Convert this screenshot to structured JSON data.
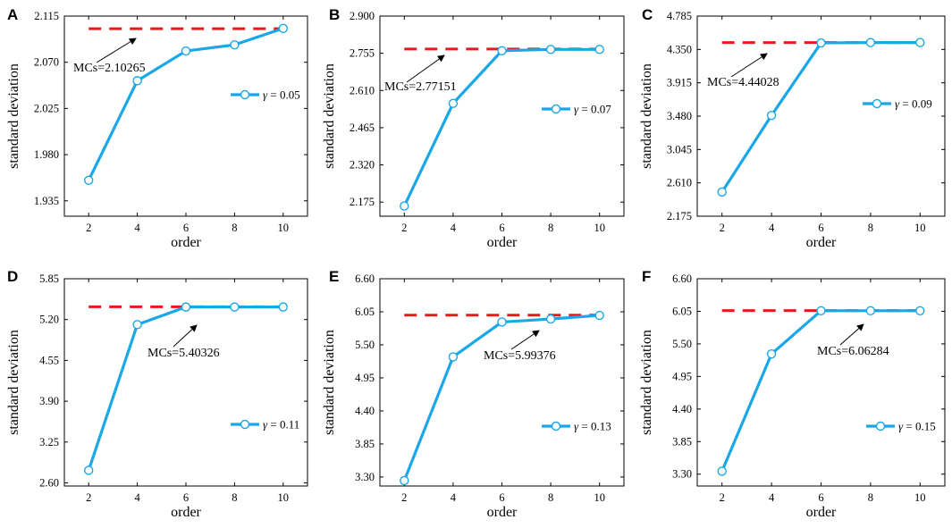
{
  "figure": {
    "xlabel": "order",
    "ylabel": "standard deviation"
  },
  "colors": {
    "series": "#1aa7e8",
    "reference": "#e8191b",
    "axis": "#000000",
    "marker_fill": "#ffffff"
  },
  "chart_data": [
    {
      "panel": "A",
      "type": "line",
      "x": [
        2,
        4,
        6,
        8,
        10
      ],
      "xticks": [
        2,
        4,
        6,
        8,
        10
      ],
      "xlim": [
        1,
        11
      ],
      "series": [
        {
          "name": "γ = 0.05",
          "values": [
            1.955,
            2.052,
            2.081,
            2.087,
            2.103
          ]
        }
      ],
      "reference": {
        "value": 2.10265,
        "label": "MCs=2.10265"
      },
      "yticks": [
        "1.935",
        "1.980",
        "2.025",
        "2.070",
        "2.115"
      ],
      "ylim": [
        1.92,
        2.115
      ],
      "xlabel": "order",
      "ylabel": "standard deviation",
      "legend_label": "γ = 0.05",
      "legend_gamma": "γ",
      "legend_value": " = 0.05"
    },
    {
      "panel": "B",
      "type": "line",
      "x": [
        2,
        4,
        6,
        8,
        10
      ],
      "xticks": [
        2,
        4,
        6,
        8,
        10
      ],
      "xlim": [
        1,
        11
      ],
      "series": [
        {
          "name": "γ = 0.07",
          "values": [
            2.16,
            2.56,
            2.765,
            2.77,
            2.77
          ]
        }
      ],
      "reference": {
        "value": 2.77151,
        "label": "MCs=2.77151"
      },
      "yticks": [
        "2.175",
        "2.320",
        "2.465",
        "2.610",
        "2.755",
        "2.900"
      ],
      "ylim": [
        2.12,
        2.9
      ],
      "xlabel": "order",
      "ylabel": "standard deviation",
      "legend_label": "γ = 0.07",
      "legend_gamma": "γ",
      "legend_value": " = 0.07"
    },
    {
      "panel": "C",
      "type": "line",
      "x": [
        2,
        4,
        6,
        8,
        10
      ],
      "xticks": [
        2,
        4,
        6,
        8,
        10
      ],
      "xlim": [
        1,
        11
      ],
      "series": [
        {
          "name": "γ = 0.09",
          "values": [
            2.49,
            3.49,
            4.435,
            4.44,
            4.44
          ]
        }
      ],
      "reference": {
        "value": 4.44028,
        "label": "MCs=4.44028"
      },
      "yticks": [
        "2.175",
        "2.610",
        "3.045",
        "3.480",
        "3.915",
        "4.350",
        "4.785"
      ],
      "ylim": [
        2.175,
        4.785
      ],
      "xlabel": "order",
      "ylabel": "standard deviation",
      "legend_label": "γ = 0.09",
      "legend_gamma": "γ",
      "legend_value": " = 0.09"
    },
    {
      "panel": "D",
      "type": "line",
      "x": [
        2,
        4,
        6,
        8,
        10
      ],
      "xticks": [
        2,
        4,
        6,
        8,
        10
      ],
      "xlim": [
        1,
        11
      ],
      "series": [
        {
          "name": "γ = 0.11",
          "values": [
            2.8,
            5.12,
            5.4,
            5.4,
            5.4
          ]
        }
      ],
      "reference": {
        "value": 5.40326,
        "label": "MCs=5.40326"
      },
      "yticks": [
        "2.60",
        "3.25",
        "3.90",
        "4.55",
        "5.20",
        "5.85"
      ],
      "ylim": [
        2.55,
        5.85
      ],
      "xlabel": "order",
      "ylabel": "standard deviation",
      "legend_label": "γ = 0.11",
      "legend_gamma": "γ",
      "legend_value": " = 0.11"
    },
    {
      "panel": "E",
      "type": "line",
      "x": [
        2,
        4,
        6,
        8,
        10
      ],
      "xticks": [
        2,
        4,
        6,
        8,
        10
      ],
      "xlim": [
        1,
        11
      ],
      "series": [
        {
          "name": "γ = 0.13",
          "values": [
            3.24,
            5.3,
            5.88,
            5.93,
            5.99
          ]
        }
      ],
      "reference": {
        "value": 5.99376,
        "label": "MCs=5.99376"
      },
      "yticks": [
        "3.30",
        "3.85",
        "4.40",
        "4.95",
        "5.50",
        "6.05",
        "6.60"
      ],
      "ylim": [
        3.15,
        6.6
      ],
      "xlabel": "order",
      "ylabel": "standard deviation",
      "legend_label": "γ = 0.13",
      "legend_gamma": "γ",
      "legend_value": " = 0.13"
    },
    {
      "panel": "F",
      "type": "line",
      "x": [
        2,
        4,
        6,
        8,
        10
      ],
      "xticks": [
        2,
        4,
        6,
        8,
        10
      ],
      "xlim": [
        1,
        11
      ],
      "series": [
        {
          "name": "γ = 0.15",
          "values": [
            3.35,
            5.33,
            6.06,
            6.06,
            6.06
          ]
        }
      ],
      "reference": {
        "value": 6.06284,
        "label": "MCs=6.06284"
      },
      "yticks": [
        "3.30",
        "3.85",
        "4.40",
        "4.95",
        "5.50",
        "6.05",
        "6.60"
      ],
      "ylim": [
        3.1,
        6.6
      ],
      "xlabel": "order",
      "ylabel": "standard deviation",
      "legend_label": "γ = 0.15",
      "legend_gamma": "γ",
      "legend_value": " = 0.15"
    }
  ]
}
